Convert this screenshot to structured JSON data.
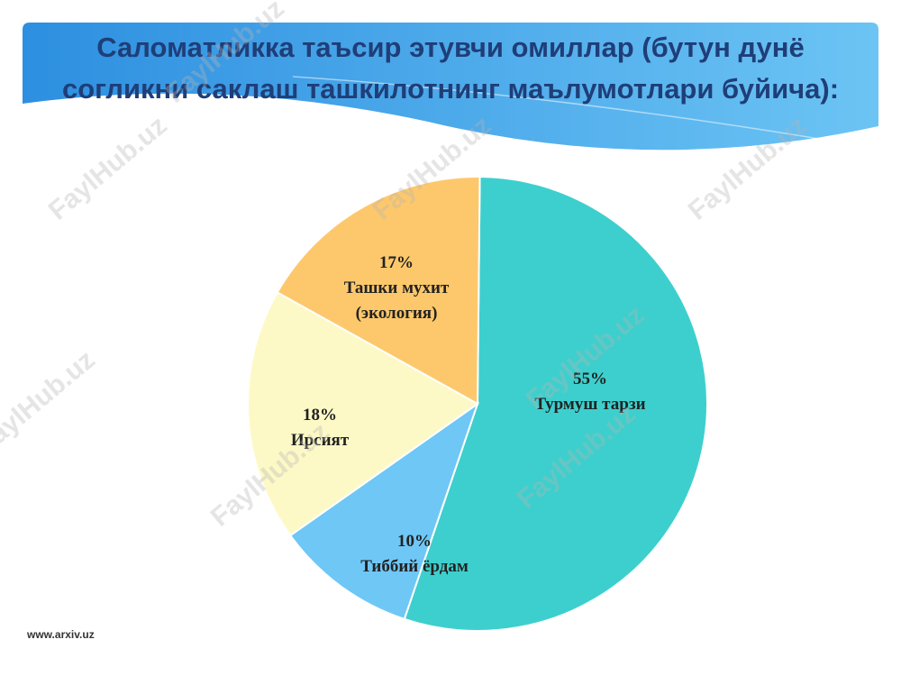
{
  "chart_data": {
    "type": "pie",
    "title": "Саломатликка таъсир этувчи омиллар (бутун дунё согликни саклаш ташкилотнинг маълумотлари буйича):",
    "categories": [
      "Турмуш тарзи",
      "Тиббий ёрдам",
      "Ирсият",
      "Ташки мухит (экология)"
    ],
    "values": [
      55,
      10,
      18,
      17
    ],
    "value_labels": [
      "55%",
      "10%",
      "18%",
      "17%"
    ],
    "colors": [
      "#3dcfcd",
      "#6fc7f6",
      "#fdf9c6",
      "#fdc86c"
    ]
  },
  "watermark": "FaylHub.uz",
  "footer": "www.arxiv.uz"
}
